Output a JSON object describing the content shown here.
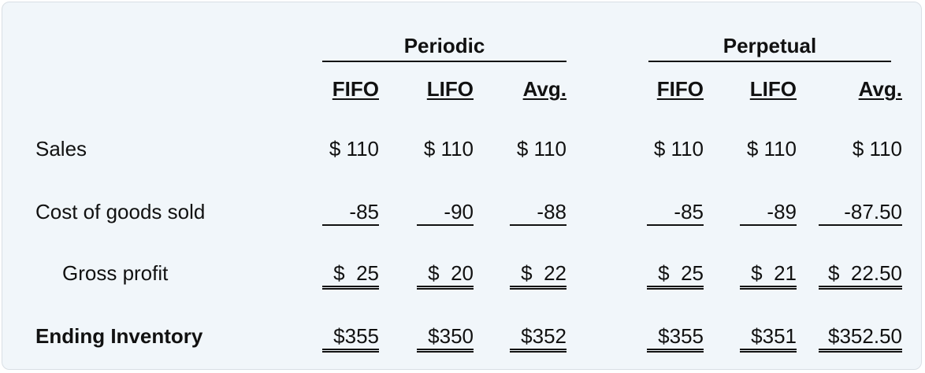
{
  "groups": {
    "periodic": "Periodic",
    "perpetual": "Perpetual"
  },
  "columns": [
    "FIFO",
    "LIFO",
    "Avg.",
    "FIFO",
    "LIFO",
    "Avg."
  ],
  "rows": [
    {
      "label": "Sales",
      "values": [
        "$ 110",
        "$ 110",
        "$ 110",
        "$ 110",
        "$ 110",
        "$ 110"
      ]
    },
    {
      "label": "Cost of goods sold",
      "values": [
        "-85",
        "-90",
        "-88",
        "-85",
        "-89",
        "-87.50"
      ]
    },
    {
      "label": "Gross profit",
      "values": [
        "$  25",
        "$  20",
        "$  22",
        "$  25",
        "$  21",
        "$  22.50"
      ]
    },
    {
      "label": "Ending Inventory",
      "values": [
        "$355",
        "$350",
        "$352",
        "$355",
        "$351",
        "$352.50"
      ]
    }
  ]
}
